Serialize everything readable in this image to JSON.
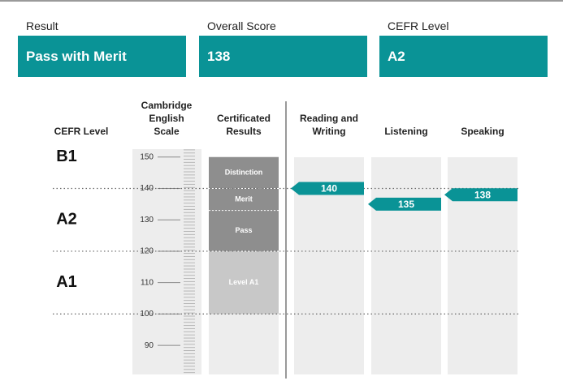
{
  "summary": [
    {
      "label": "Result",
      "value": "Pass with Merit"
    },
    {
      "label": "Overall Score",
      "value": "138"
    },
    {
      "label": "CEFR Level",
      "value": "A2"
    }
  ],
  "chart": {
    "cefr_title": "CEFR Level",
    "scale_title": "Cambridge English Scale",
    "results_title": "Certificated Results",
    "ylim": [
      81,
      152
    ],
    "yticks": [
      90,
      100,
      110,
      120,
      130,
      140,
      150
    ],
    "cefr_levels": [
      {
        "label": "B1",
        "from": 140
      },
      {
        "label": "A2",
        "from": 120
      },
      {
        "label": "A1",
        "from": 100
      }
    ],
    "bands": [
      {
        "label": "Distinction",
        "from": 140,
        "to": 150,
        "color": "#8e8e8e"
      },
      {
        "label": "Merit",
        "from": 133,
        "to": 140,
        "color": "#8e8e8e"
      },
      {
        "label": "Pass",
        "from": 120,
        "to": 133,
        "color": "#8e8e8e"
      },
      {
        "label": "Level A1",
        "from": 100,
        "to": 120,
        "color": "#c8c8c8"
      }
    ],
    "marker_color": "#0a9396",
    "skills": [
      {
        "name": "Reading and Writing",
        "score": 140
      },
      {
        "name": "Listening",
        "score": 135
      },
      {
        "name": "Speaking",
        "score": 138
      }
    ]
  }
}
